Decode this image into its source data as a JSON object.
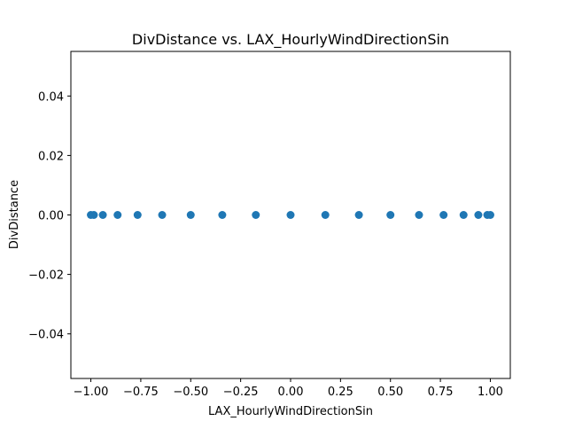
{
  "chart_data": {
    "type": "scatter",
    "title": "DivDistance vs. LAX_HourlyWindDirectionSin",
    "xlabel": "LAX_HourlyWindDirectionSin",
    "ylabel": "DivDistance",
    "xlim": [
      -1.1,
      1.1
    ],
    "ylim": [
      -0.055,
      0.055
    ],
    "xticks": [
      -1.0,
      -0.75,
      -0.5,
      -0.25,
      0.0,
      0.25,
      0.5,
      0.75,
      1.0
    ],
    "xtick_labels": [
      "−1.00",
      "−0.75",
      "−0.50",
      "−0.25",
      "0.00",
      "0.25",
      "0.50",
      "0.75",
      "1.00"
    ],
    "yticks": [
      -0.04,
      -0.02,
      0.0,
      0.02,
      0.04
    ],
    "ytick_labels": [
      "−0.04",
      "−0.02",
      "0.00",
      "0.02",
      "0.04"
    ],
    "grid": false,
    "marker_color": "#1f77b4",
    "points": [
      {
        "x": -1.0,
        "y": 0.0
      },
      {
        "x": -0.985,
        "y": 0.0
      },
      {
        "x": -0.94,
        "y": 0.0
      },
      {
        "x": -0.866,
        "y": 0.0
      },
      {
        "x": -0.766,
        "y": 0.0
      },
      {
        "x": -0.643,
        "y": 0.0
      },
      {
        "x": -0.5,
        "y": 0.0
      },
      {
        "x": -0.342,
        "y": 0.0
      },
      {
        "x": -0.174,
        "y": 0.0
      },
      {
        "x": 0.0,
        "y": 0.0
      },
      {
        "x": 0.174,
        "y": 0.0
      },
      {
        "x": 0.342,
        "y": 0.0
      },
      {
        "x": 0.5,
        "y": 0.0
      },
      {
        "x": 0.643,
        "y": 0.0
      },
      {
        "x": 0.766,
        "y": 0.0
      },
      {
        "x": 0.866,
        "y": 0.0
      },
      {
        "x": 0.94,
        "y": 0.0
      },
      {
        "x": 0.985,
        "y": 0.0
      },
      {
        "x": 1.0,
        "y": 0.0
      }
    ]
  }
}
